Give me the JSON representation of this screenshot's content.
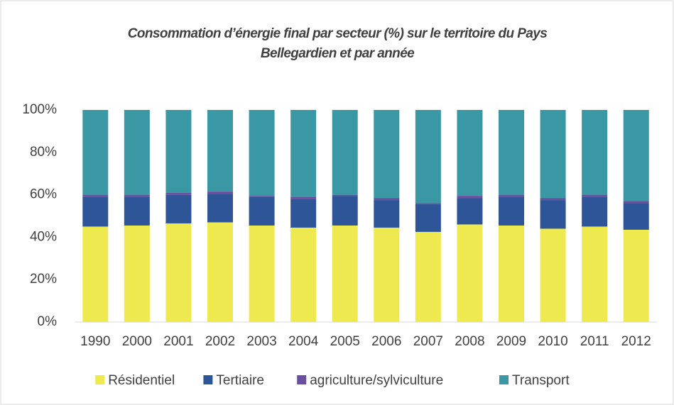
{
  "chart_data": {
    "type": "stacked_bar",
    "title": "Consommation d’énergie final par secteur (%) sur le territoire du Pays Bellegardien et par année",
    "categories": [
      "1990",
      "2000",
      "2001",
      "2002",
      "2003",
      "2004",
      "2005",
      "2006",
      "2007",
      "2008",
      "2009",
      "2010",
      "2011",
      "2012"
    ],
    "series": [
      {
        "name": "Résidentiel",
        "color": "#ede94f",
        "values": [
          45,
          45.5,
          46.5,
          47,
          45.5,
          44.5,
          45.5,
          44.5,
          42.5,
          46,
          45.5,
          44,
          45,
          43.5
        ]
      },
      {
        "name": "Tertiaire",
        "color": "#2e5597",
        "values": [
          14,
          13.5,
          13.5,
          13.5,
          13.5,
          13.5,
          14,
          13,
          13,
          12.5,
          13.5,
          13.5,
          14,
          12.5
        ]
      },
      {
        "name": "agriculture/sylviculture",
        "color": "#6a4fa0",
        "values": [
          1,
          1,
          1,
          1,
          0.5,
          1,
          0.5,
          1,
          0.5,
          1,
          1,
          1,
          1,
          1
        ]
      },
      {
        "name": "Transport",
        "color": "#3a98a4",
        "values": [
          40,
          40,
          39,
          38.5,
          40.5,
          41,
          40,
          41.5,
          44,
          40.5,
          40,
          41.5,
          40,
          43
        ]
      }
    ],
    "ylim": [
      0,
      100
    ],
    "yticks": [
      {
        "value": 0,
        "label": "0%"
      },
      {
        "value": 20,
        "label": "20%"
      },
      {
        "value": 40,
        "label": "40%"
      },
      {
        "value": 60,
        "label": "60%"
      },
      {
        "value": 80,
        "label": "80%"
      },
      {
        "value": 100,
        "label": "100%"
      }
    ],
    "grid": false,
    "legend": "bottom"
  }
}
